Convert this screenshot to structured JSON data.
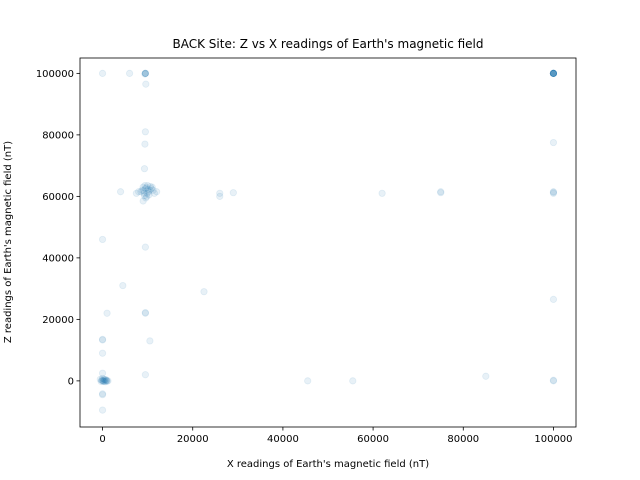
{
  "chart_data": {
    "type": "scatter",
    "title": "BACK Site: Z vs X readings of Earth's magnetic field",
    "xlabel": "X readings of Earth's magnetic field (nT)",
    "ylabel": "Z readings of Earth's magnetic field (nT)",
    "xlim": [
      -5000,
      105000
    ],
    "ylim": [
      -15000,
      105000
    ],
    "xticks": [
      0,
      20000,
      40000,
      60000,
      80000,
      100000
    ],
    "yticks": [
      0,
      20000,
      40000,
      60000,
      80000,
      100000
    ],
    "grid": false,
    "marker_color": "#1f77b4",
    "marker_alpha": 0.1,
    "points": [
      [
        100000,
        100000
      ],
      [
        100000,
        100000
      ],
      [
        100000,
        100000
      ],
      [
        100000,
        100000
      ],
      [
        100000,
        100000
      ],
      [
        100000,
        100000
      ],
      [
        100000,
        100000
      ],
      [
        100000,
        100000
      ],
      [
        100000,
        100000
      ],
      [
        100000,
        100000
      ],
      [
        100000,
        100000
      ],
      [
        100000,
        100000
      ],
      [
        9500,
        100000
      ],
      [
        9500,
        100000
      ],
      [
        9500,
        100000
      ],
      [
        9500,
        100000
      ],
      [
        9400,
        99800
      ],
      [
        0,
        100000
      ],
      [
        6000,
        100000
      ],
      [
        9600,
        96500
      ],
      [
        9500,
        81000
      ],
      [
        9400,
        77000
      ],
      [
        9300,
        69000
      ],
      [
        100000,
        77500
      ],
      [
        9000,
        63000
      ],
      [
        9500,
        62500
      ],
      [
        10000,
        63500
      ],
      [
        10500,
        62000
      ],
      [
        11000,
        63000
      ],
      [
        9200,
        61000
      ],
      [
        9800,
        60000
      ],
      [
        10200,
        61500
      ],
      [
        9600,
        59500
      ],
      [
        10800,
        62500
      ],
      [
        8800,
        62000
      ],
      [
        9400,
        63500
      ],
      [
        11200,
        62000
      ],
      [
        9900,
        61000
      ],
      [
        10600,
        63200
      ],
      [
        9100,
        61800
      ],
      [
        9700,
        62800
      ],
      [
        10300,
        60500
      ],
      [
        8500,
        61500
      ],
      [
        11500,
        61000
      ],
      [
        9300,
        60200
      ],
      [
        10100,
        62200
      ],
      [
        9000,
        58500
      ],
      [
        12000,
        61500
      ],
      [
        8000,
        61500
      ],
      [
        7500,
        61000
      ],
      [
        4000,
        61500
      ],
      [
        26000,
        61000
      ],
      [
        26000,
        60000
      ],
      [
        29000,
        61200
      ],
      [
        62000,
        61000
      ],
      [
        75000,
        61500
      ],
      [
        75000,
        61200
      ],
      [
        100000,
        61500
      ],
      [
        100000,
        61000
      ],
      [
        100000,
        61300
      ],
      [
        0,
        46000
      ],
      [
        9500,
        43500
      ],
      [
        4500,
        31000
      ],
      [
        22500,
        29000
      ],
      [
        100000,
        26500
      ],
      [
        1000,
        22000
      ],
      [
        9500,
        22000
      ],
      [
        9500,
        22200
      ],
      [
        0,
        13500
      ],
      [
        0,
        13300
      ],
      [
        10500,
        13000
      ],
      [
        0,
        9000
      ],
      [
        0,
        2500
      ],
      [
        9500,
        2000
      ],
      [
        85000,
        1500
      ],
      [
        -500,
        500
      ],
      [
        0,
        0
      ],
      [
        200,
        -200
      ],
      [
        500,
        300
      ],
      [
        800,
        0
      ],
      [
        1000,
        -100
      ],
      [
        -200,
        200
      ],
      [
        300,
        500
      ],
      [
        600,
        -300
      ],
      [
        900,
        200
      ],
      [
        100,
        100
      ],
      [
        400,
        -100
      ],
      [
        0,
        800
      ],
      [
        700,
        400
      ],
      [
        -300,
        -200
      ],
      [
        1200,
        0
      ],
      [
        45500,
        0
      ],
      [
        55500,
        0
      ],
      [
        100000,
        0
      ],
      [
        100000,
        200
      ],
      [
        0,
        -4500
      ],
      [
        0,
        -4200
      ],
      [
        0,
        -9500
      ]
    ]
  }
}
